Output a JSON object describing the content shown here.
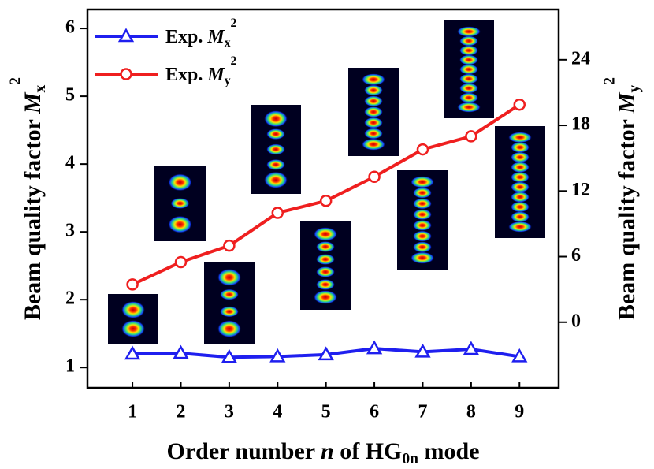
{
  "chart_data": {
    "type": "line",
    "xlabel": [
      "Order number ",
      "n",
      " of HG",
      "0n",
      " mode"
    ],
    "ylabel": [
      "Beam quality factor ",
      "M",
      "x",
      "2"
    ],
    "y2label": [
      "Beam quality factor ",
      "M",
      "y",
      "2"
    ],
    "x": [
      1,
      2,
      3,
      4,
      5,
      6,
      7,
      8,
      9
    ],
    "xlim": [
      0.07,
      9.81
    ],
    "xticks": [
      1,
      2,
      3,
      4,
      5,
      6,
      7,
      8,
      9
    ],
    "ylim": [
      0.7,
      6.28
    ],
    "yticks": [
      1,
      2,
      3,
      4,
      5,
      6
    ],
    "y2lim": [
      -6,
      28.6
    ],
    "y2ticks": [
      0,
      6,
      12,
      18,
      24
    ],
    "legend": "upper left",
    "series": [
      {
        "name": [
          "Exp. ",
          "M",
          "x",
          "2"
        ],
        "color": "#1f1fef",
        "marker": "triangle",
        "values": [
          1.2,
          1.21,
          1.15,
          1.16,
          1.19,
          1.28,
          1.23,
          1.27,
          1.16
        ]
      },
      {
        "name": [
          "Exp. ",
          "M",
          "y",
          "2"
        ],
        "color": "#ef1f1f",
        "marker": "circle",
        "axis": "y2",
        "values": [
          3.45,
          5.5,
          7.0,
          10.0,
          11.1,
          13.3,
          15.8,
          17.0,
          19.9
        ]
      }
    ]
  }
}
